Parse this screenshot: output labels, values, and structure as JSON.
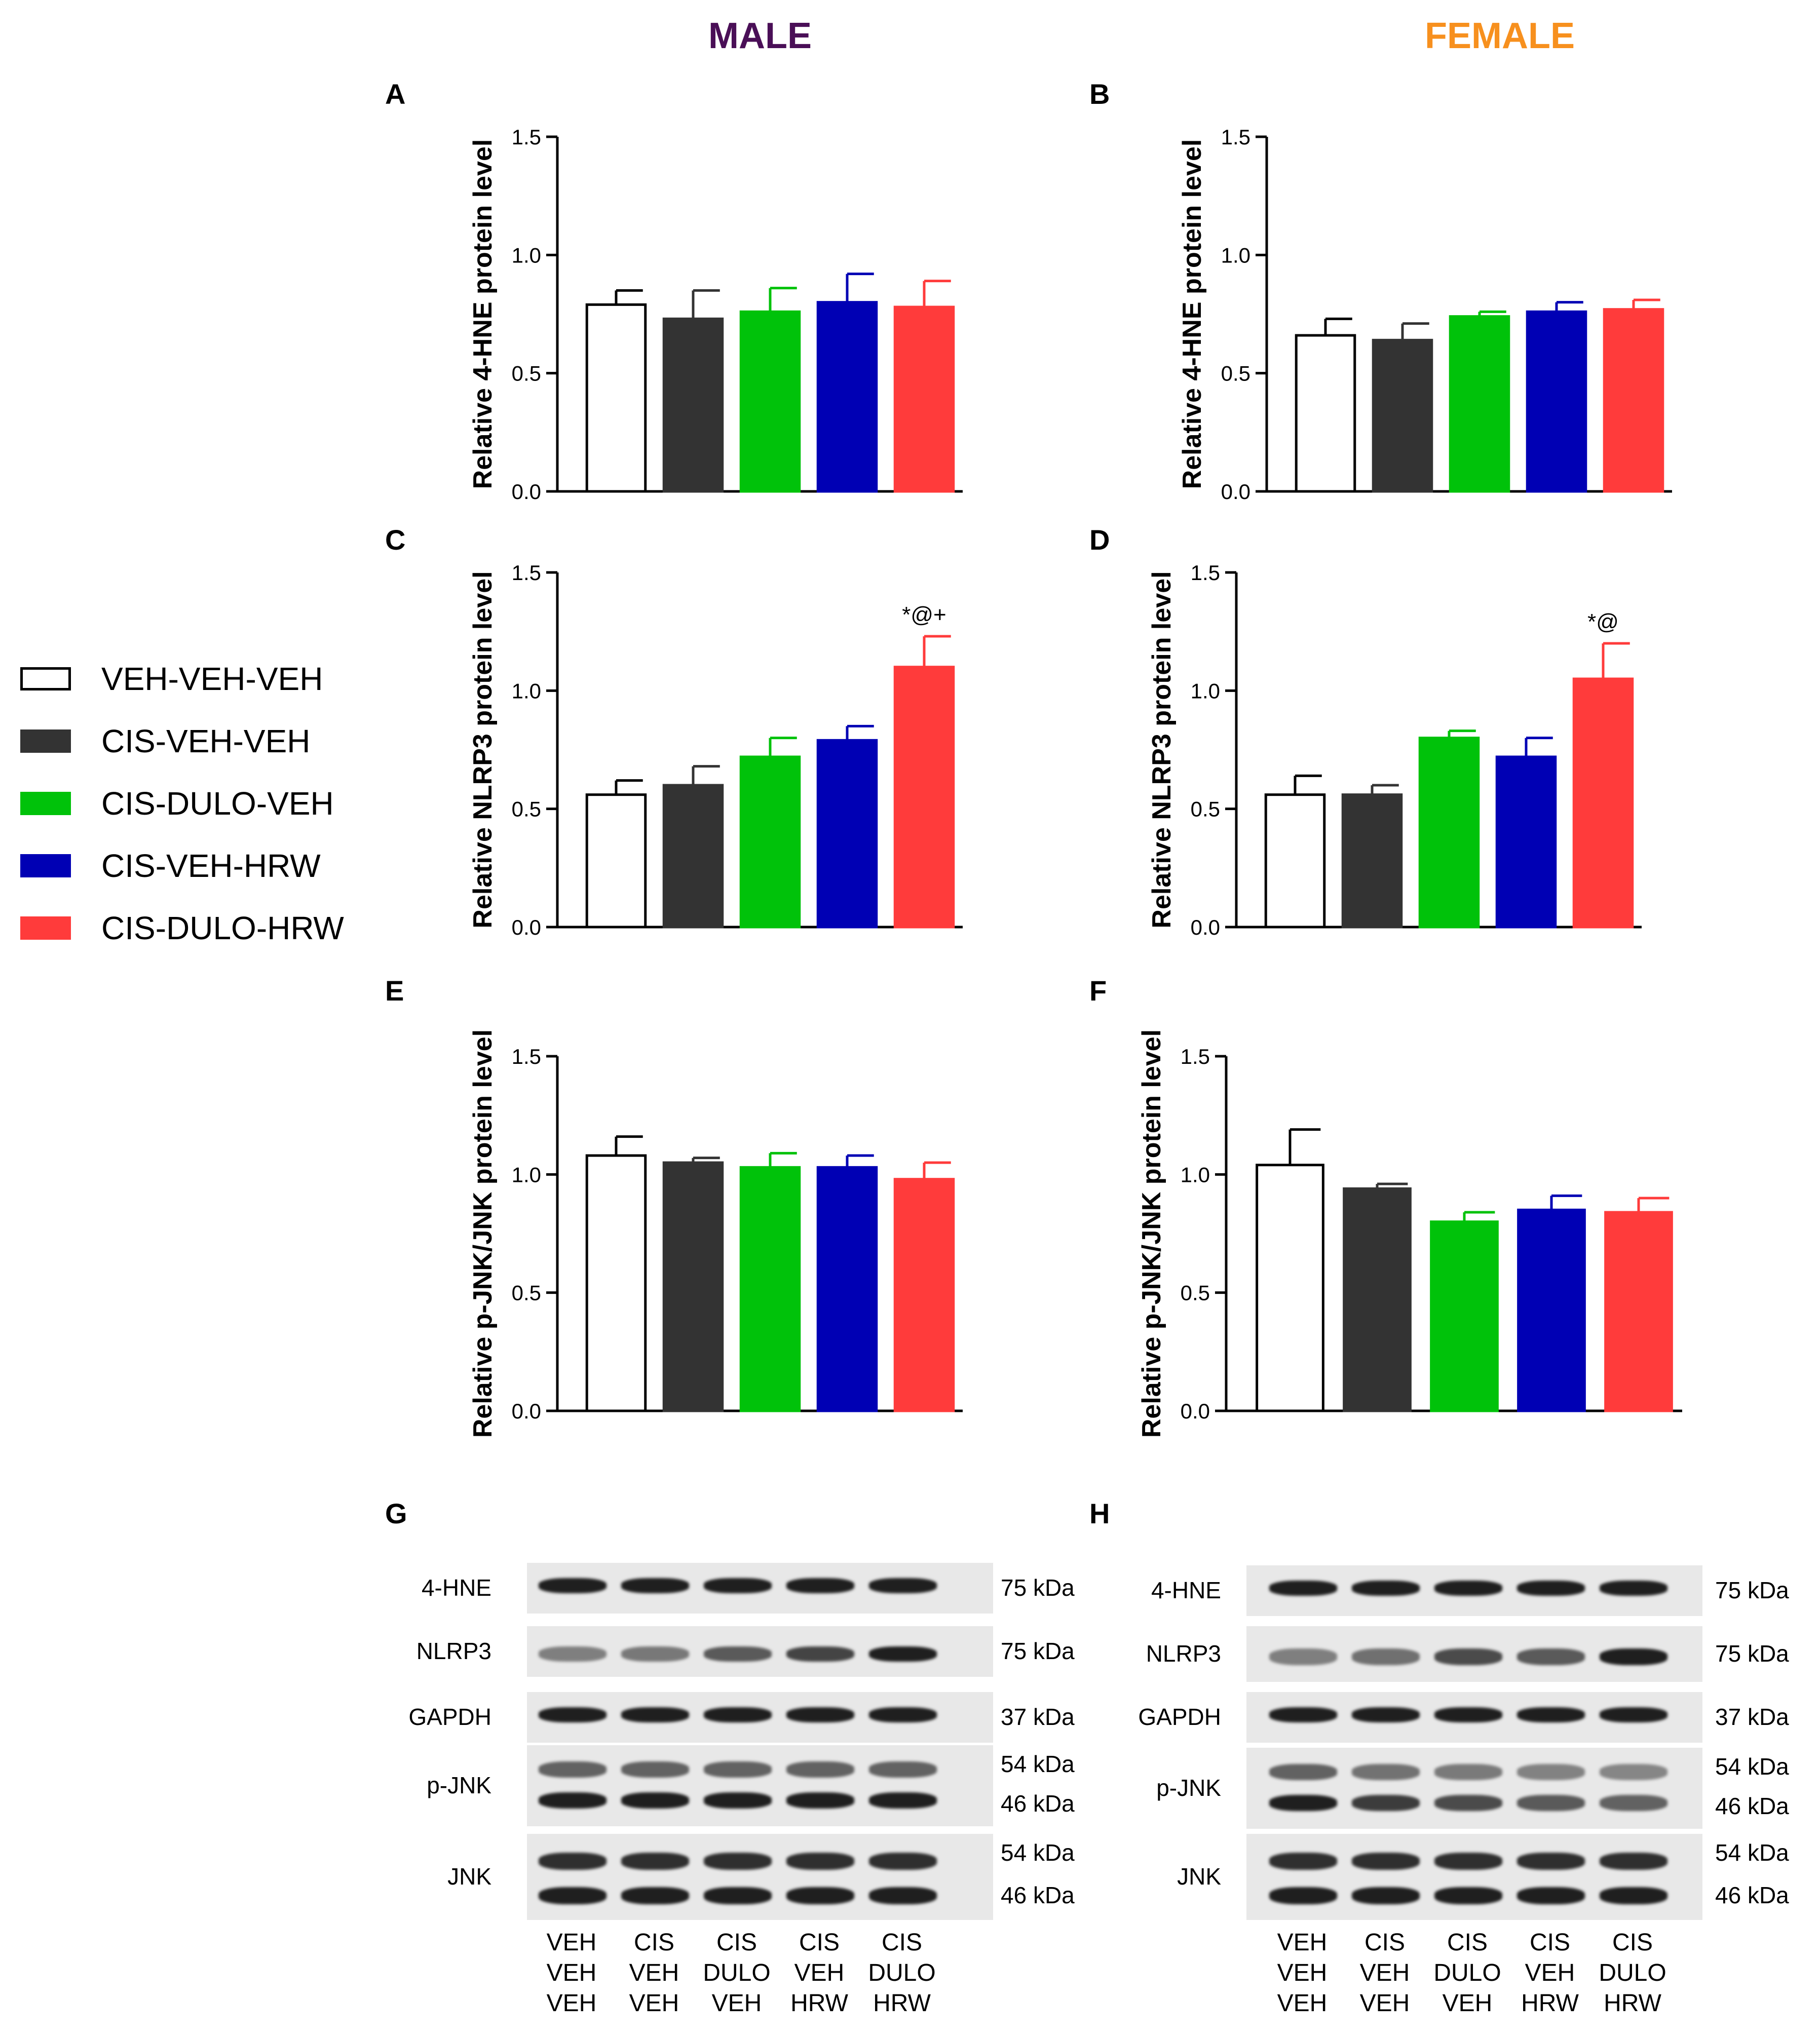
{
  "titles": {
    "male": "MALE",
    "female": "FEMALE"
  },
  "colors": {
    "male_title": "#4a0f57",
    "female_title": "#f7901e"
  },
  "legend": [
    {
      "label": "VEH-VEH-VEH",
      "color": "#ffffff"
    },
    {
      "label": "CIS-VEH-VEH",
      "color": "#333333"
    },
    {
      "label": "CIS-DULO-VEH",
      "color": "#00c20a"
    },
    {
      "label": "CIS-VEH-HRW",
      "color": "#0000b4"
    },
    {
      "label": "CIS-DULO-HRW",
      "color": "#ff3b3b"
    }
  ],
  "chart_data": [
    {
      "id": "A",
      "type": "bar",
      "ylabel": "Relative 4-HNE protein level",
      "ylim": [
        0,
        1.5
      ],
      "yticks": [
        "0.0",
        "0.5",
        "1.0",
        "1.5"
      ],
      "values": [
        0.79,
        0.73,
        0.76,
        0.8,
        0.78
      ],
      "errors": [
        0.06,
        0.12,
        0.1,
        0.12,
        0.11
      ],
      "annotation": ""
    },
    {
      "id": "B",
      "type": "bar",
      "ylabel": "Relative 4-HNE protein level",
      "ylim": [
        0,
        1.5
      ],
      "yticks": [
        "0.0",
        "0.5",
        "1.0",
        "1.5"
      ],
      "values": [
        0.66,
        0.64,
        0.74,
        0.76,
        0.77
      ],
      "errors": [
        0.07,
        0.07,
        0.02,
        0.04,
        0.04
      ],
      "annotation": ""
    },
    {
      "id": "C",
      "type": "bar",
      "ylabel": "Relative NLRP3 protein level",
      "ylim": [
        0,
        1.5
      ],
      "yticks": [
        "0.0",
        "0.5",
        "1.0",
        "1.5"
      ],
      "values": [
        0.56,
        0.6,
        0.72,
        0.79,
        1.1
      ],
      "errors": [
        0.06,
        0.08,
        0.08,
        0.06,
        0.13
      ],
      "annotation": "*@+"
    },
    {
      "id": "D",
      "type": "bar",
      "ylabel": "Relative NLRP3 protein level",
      "ylim": [
        0,
        1.5
      ],
      "yticks": [
        "0.0",
        "0.5",
        "1.0",
        "1.5"
      ],
      "values": [
        0.56,
        0.56,
        0.8,
        0.72,
        1.05
      ],
      "errors": [
        0.08,
        0.04,
        0.03,
        0.08,
        0.15
      ],
      "annotation": "*@"
    },
    {
      "id": "E",
      "type": "bar",
      "ylabel": "Relative p-JNK/JNK protein level",
      "ylim": [
        0,
        1.5
      ],
      "yticks": [
        "0.0",
        "0.5",
        "1.0",
        "1.5"
      ],
      "values": [
        1.08,
        1.05,
        1.03,
        1.03,
        0.98
      ],
      "errors": [
        0.08,
        0.02,
        0.06,
        0.05,
        0.07
      ],
      "annotation": ""
    },
    {
      "id": "F",
      "type": "bar",
      "ylabel": "Relative p-JNK/JNK protein level",
      "ylim": [
        0,
        1.5
      ],
      "yticks": [
        "0.0",
        "0.5",
        "1.0",
        "1.5"
      ],
      "values": [
        1.04,
        0.94,
        0.8,
        0.85,
        0.84
      ],
      "errors": [
        0.15,
        0.02,
        0.04,
        0.06,
        0.06
      ],
      "annotation": ""
    }
  ],
  "blots": {
    "G": {
      "id": "G",
      "rows": [
        {
          "label": "4-HNE",
          "kda": [
            "75 kDa"
          ]
        },
        {
          "label": "NLRP3",
          "kda": [
            "75 kDa"
          ]
        },
        {
          "label": "GAPDH",
          "kda": [
            "37 kDa"
          ]
        },
        {
          "label": "p-JNK",
          "kda": [
            "54 kDa",
            "46 kDa"
          ]
        },
        {
          "label": "JNK",
          "kda": [
            "54 kDa",
            "46 kDa"
          ]
        }
      ]
    },
    "H": {
      "id": "H",
      "rows": [
        {
          "label": "4-HNE",
          "kda": [
            "75 kDa"
          ]
        },
        {
          "label": "NLRP3",
          "kda": [
            "75 kDa"
          ]
        },
        {
          "label": "GAPDH",
          "kda": [
            "37 kDa"
          ]
        },
        {
          "label": "p-JNK",
          "kda": [
            "54 kDa",
            "46 kDa"
          ]
        },
        {
          "label": "JNK",
          "kda": [
            "54 kDa",
            "46 kDa"
          ]
        }
      ]
    }
  },
  "lane_labels": [
    [
      "VEH",
      "VEH",
      "VEH"
    ],
    [
      "CIS",
      "VEH",
      "VEH"
    ],
    [
      "CIS",
      "DULO",
      "VEH"
    ],
    [
      "CIS",
      "VEH",
      "HRW"
    ],
    [
      "CIS",
      "DULO",
      "HRW"
    ]
  ]
}
